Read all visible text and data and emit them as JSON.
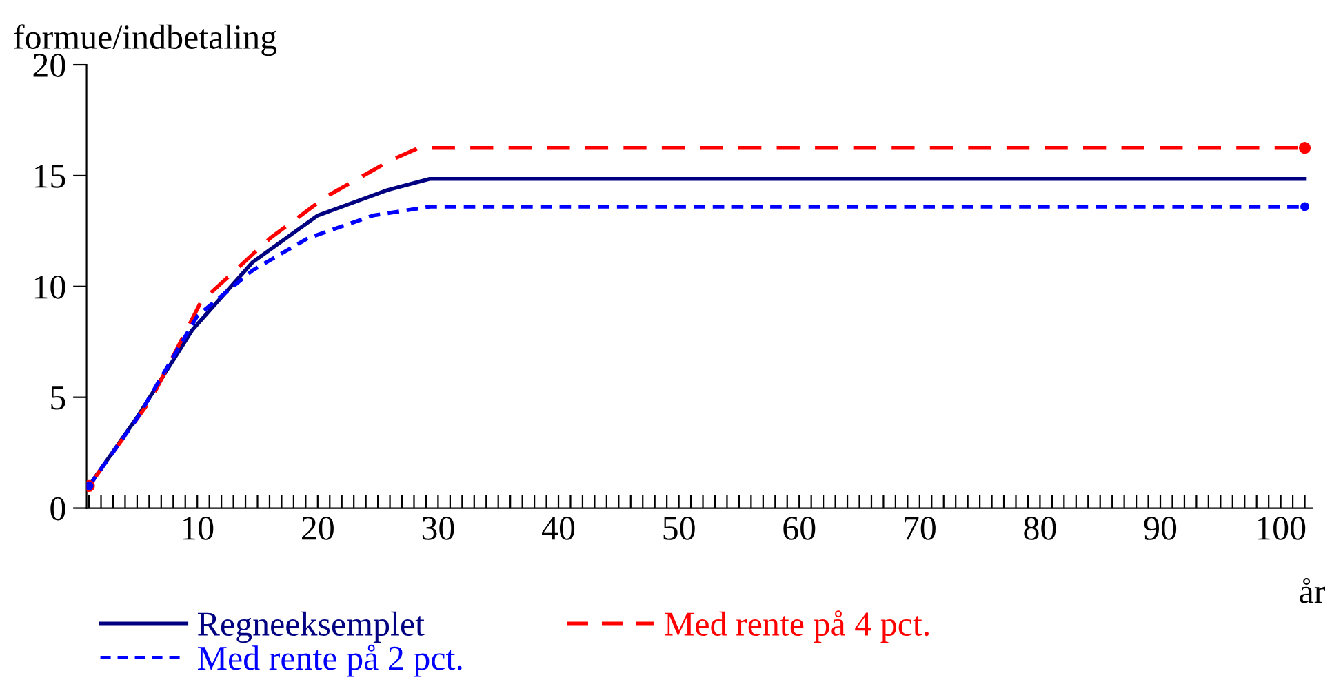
{
  "chart_data": {
    "type": "line",
    "ylabel": "formue/indbetaling",
    "xlabel": "år",
    "xlim": [
      0.8,
      102.6
    ],
    "ylim": [
      0,
      20
    ],
    "yticks": [
      0,
      5,
      10,
      15,
      20
    ],
    "xticks": [
      {
        "value": 1,
        "label": null
      },
      {
        "value": 2,
        "label": null
      },
      {
        "value": 3,
        "label": null
      },
      {
        "value": 4,
        "label": null
      },
      {
        "value": 5,
        "label": null
      },
      {
        "value": 6,
        "label": null
      },
      {
        "value": 7,
        "label": null
      },
      {
        "value": 8,
        "label": null
      },
      {
        "value": 9,
        "label": null
      },
      10,
      {
        "value": 11,
        "label": null
      },
      {
        "value": 12,
        "label": null
      },
      {
        "value": 13,
        "label": null
      },
      {
        "value": 14,
        "label": null
      },
      {
        "value": 15,
        "label": null
      },
      {
        "value": 16,
        "label": null
      },
      {
        "value": 17,
        "label": null
      },
      {
        "value": 18,
        "label": null
      },
      {
        "value": 19,
        "label": null
      },
      20,
      {
        "value": 21,
        "label": null
      },
      {
        "value": 22,
        "label": null
      },
      {
        "value": 23,
        "label": null
      },
      {
        "value": 24,
        "label": null
      },
      {
        "value": 25,
        "label": null
      },
      {
        "value": 26,
        "label": null
      },
      {
        "value": 27,
        "label": null
      },
      {
        "value": 28,
        "label": null
      },
      {
        "value": 29,
        "label": null
      },
      30,
      {
        "value": 31,
        "label": null
      },
      {
        "value": 32,
        "label": null
      },
      {
        "value": 33,
        "label": null
      },
      {
        "value": 34,
        "label": null
      },
      {
        "value": 35,
        "label": null
      },
      {
        "value": 36,
        "label": null
      },
      {
        "value": 37,
        "label": null
      },
      {
        "value": 38,
        "label": null
      },
      {
        "value": 39,
        "label": null
      },
      40,
      {
        "value": 41,
        "label": null
      },
      {
        "value": 42,
        "label": null
      },
      {
        "value": 43,
        "label": null
      },
      {
        "value": 44,
        "label": null
      },
      {
        "value": 45,
        "label": null
      },
      {
        "value": 46,
        "label": null
      },
      {
        "value": 47,
        "label": null
      },
      {
        "value": 48,
        "label": null
      },
      {
        "value": 49,
        "label": null
      },
      50,
      {
        "value": 51,
        "label": null
      },
      {
        "value": 52,
        "label": null
      },
      {
        "value": 53,
        "label": null
      },
      {
        "value": 54,
        "label": null
      },
      {
        "value": 55,
        "label": null
      },
      {
        "value": 56,
        "label": null
      },
      {
        "value": 57,
        "label": null
      },
      {
        "value": 58,
        "label": null
      },
      {
        "value": 59,
        "label": null
      },
      60,
      {
        "value": 61,
        "label": null
      },
      {
        "value": 62,
        "label": null
      },
      {
        "value": 63,
        "label": null
      },
      {
        "value": 64,
        "label": null
      },
      {
        "value": 65,
        "label": null
      },
      {
        "value": 66,
        "label": null
      },
      {
        "value": 67,
        "label": null
      },
      {
        "value": 68,
        "label": null
      },
      {
        "value": 69,
        "label": null
      },
      70,
      {
        "value": 71,
        "label": null
      },
      {
        "value": 72,
        "label": null
      },
      {
        "value": 73,
        "label": null
      },
      {
        "value": 74,
        "label": null
      },
      {
        "value": 75,
        "label": null
      },
      {
        "value": 76,
        "label": null
      },
      {
        "value": 77,
        "label": null
      },
      {
        "value": 78,
        "label": null
      },
      {
        "value": 79,
        "label": null
      },
      80,
      {
        "value": 81,
        "label": null
      },
      {
        "value": 82,
        "label": null
      },
      {
        "value": 83,
        "label": null
      },
      {
        "value": 84,
        "label": null
      },
      {
        "value": 85,
        "label": null
      },
      {
        "value": 86,
        "label": null
      },
      {
        "value": 87,
        "label": null
      },
      {
        "value": 88,
        "label": null
      },
      {
        "value": 89,
        "label": null
      },
      90,
      {
        "value": 91,
        "label": null
      },
      {
        "value": 92,
        "label": null
      },
      {
        "value": 93,
        "label": null
      },
      {
        "value": 94,
        "label": null
      },
      {
        "value": 95,
        "label": null
      },
      {
        "value": 96,
        "label": null
      },
      {
        "value": 97,
        "label": null
      },
      {
        "value": 98,
        "label": null
      },
      {
        "value": 99,
        "label": null
      },
      100,
      {
        "value": 101,
        "label": null
      },
      {
        "value": 102,
        "label": null
      }
    ],
    "grid": false,
    "legend": "bottom",
    "marker": "none",
    "series": [
      {
        "name": "Regneeksemplet",
        "color": "#000080",
        "line_style": "solid",
        "x": [
          1,
          5,
          9.6,
          14.6,
          20,
          25.8,
          29.3,
          102
        ],
        "values": [
          1,
          4.1,
          8.05,
          11.1,
          13.2,
          14.35,
          14.85,
          14.85
        ]
      },
      {
        "name": "Med rente på 4 pct.",
        "color": "#ff0000",
        "line_style": "dashed",
        "x": [
          1,
          6.2,
          10.3,
          16.1,
          20.7,
          26.1,
          28.4,
          102
        ],
        "values": [
          1,
          4.95,
          9.3,
          12.2,
          14.05,
          15.7,
          16.25,
          16.25
        ]
      },
      {
        "name": "Med rente på 2 pct.",
        "color": "#0000ff",
        "line_style": "dotted",
        "x": [
          1,
          5,
          10,
          14.6,
          19.2,
          24.6,
          29.3,
          102
        ],
        "values": [
          1,
          4.05,
          8.67,
          10.73,
          12.18,
          13.2,
          13.6,
          13.6
        ]
      }
    ]
  }
}
